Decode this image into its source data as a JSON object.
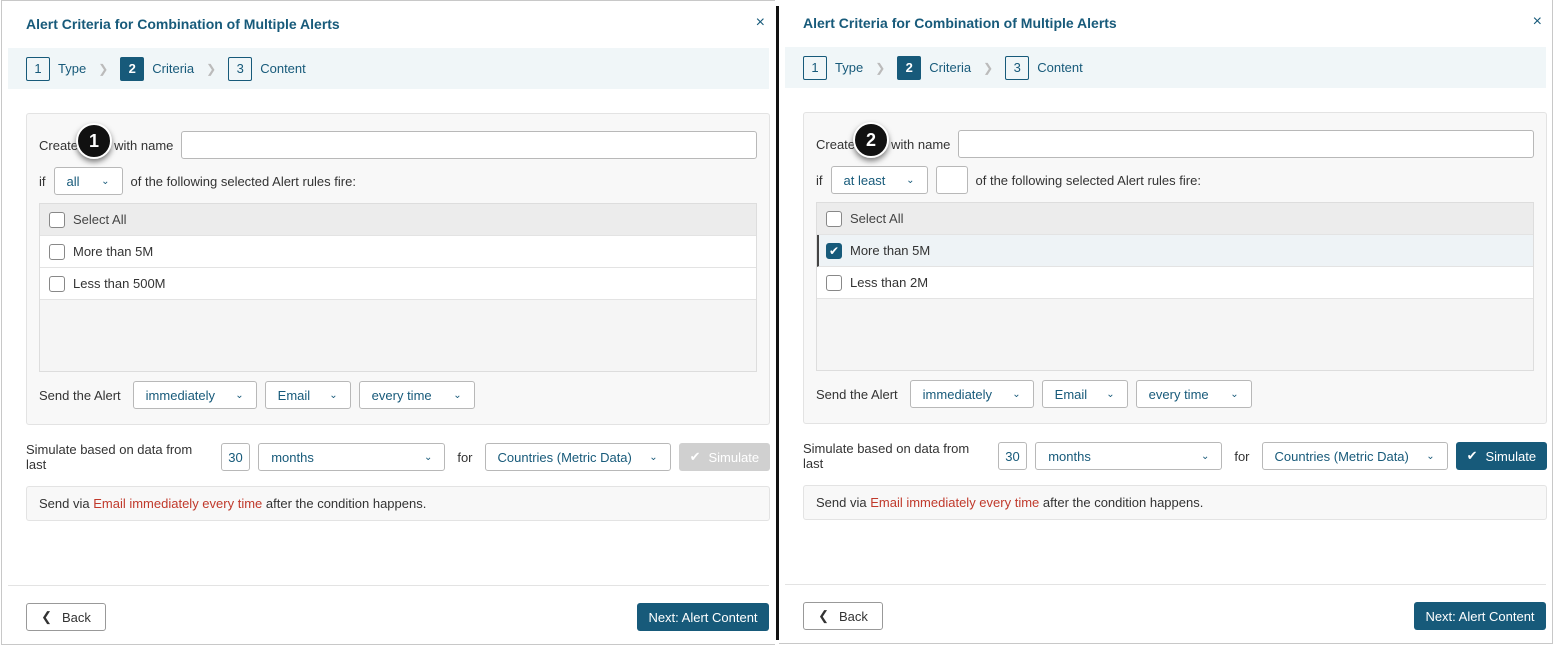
{
  "panels": [
    {
      "title": "Alert Criteria for Combination of Multiple Alerts",
      "close_icon": "×",
      "steps": [
        {
          "num": "1",
          "label": "Type"
        },
        {
          "num": "2",
          "label": "Criteria"
        },
        {
          "num": "3",
          "label": "Content"
        }
      ],
      "active_step": 2,
      "badge": "1",
      "create_label_a": "Create",
      "create_label_b": "with name",
      "name_value": "",
      "if_label": "if",
      "condition": "all",
      "count_value": null,
      "fire_label": "of the following selected Alert rules fire:",
      "select_all": "Select All",
      "rules": [
        {
          "label": "More than 5M",
          "checked": false
        },
        {
          "label": "Less than 500M",
          "checked": false
        }
      ],
      "send_label": "Send the Alert",
      "timing": "immediately",
      "channel": "Email",
      "frequency": "every time",
      "simulate_label": "Simulate based on data from last",
      "simulate_count": "30",
      "simulate_unit": "months",
      "for_label": "for",
      "simulate_source": "Countries (Metric Data)",
      "simulate_button": "Simulate",
      "simulate_enabled": false,
      "summary_a": "Send via",
      "summary_red": "Email immediately every time",
      "summary_b": "after the condition happens.",
      "back": "Back",
      "next": "Next: Alert Content"
    },
    {
      "title": "Alert Criteria for Combination of Multiple Alerts",
      "close_icon": "×",
      "steps": [
        {
          "num": "1",
          "label": "Type"
        },
        {
          "num": "2",
          "label": "Criteria"
        },
        {
          "num": "3",
          "label": "Content"
        }
      ],
      "active_step": 2,
      "badge": "2",
      "create_label_a": "Create",
      "create_label_b": "with name",
      "name_value": "",
      "if_label": "if",
      "condition": "at least",
      "count_value": "",
      "fire_label": "of the following selected Alert rules fire:",
      "select_all": "Select All",
      "rules": [
        {
          "label": "More than 5M",
          "checked": true
        },
        {
          "label": "Less than 2M",
          "checked": false
        }
      ],
      "send_label": "Send the Alert",
      "timing": "immediately",
      "channel": "Email",
      "frequency": "every time",
      "simulate_label": "Simulate based on data from last",
      "simulate_count": "30",
      "simulate_unit": "months",
      "for_label": "for",
      "simulate_source": "Countries (Metric Data)",
      "simulate_button": "Simulate",
      "simulate_enabled": true,
      "summary_a": "Send via",
      "summary_red": "Email immediately every time",
      "summary_b": "after the condition happens.",
      "back": "Back",
      "next": "Next: Alert Content"
    }
  ],
  "colors": {
    "accent": "#175a7a",
    "highlight": "#c0392b",
    "disabled": "#d0d0d0"
  }
}
